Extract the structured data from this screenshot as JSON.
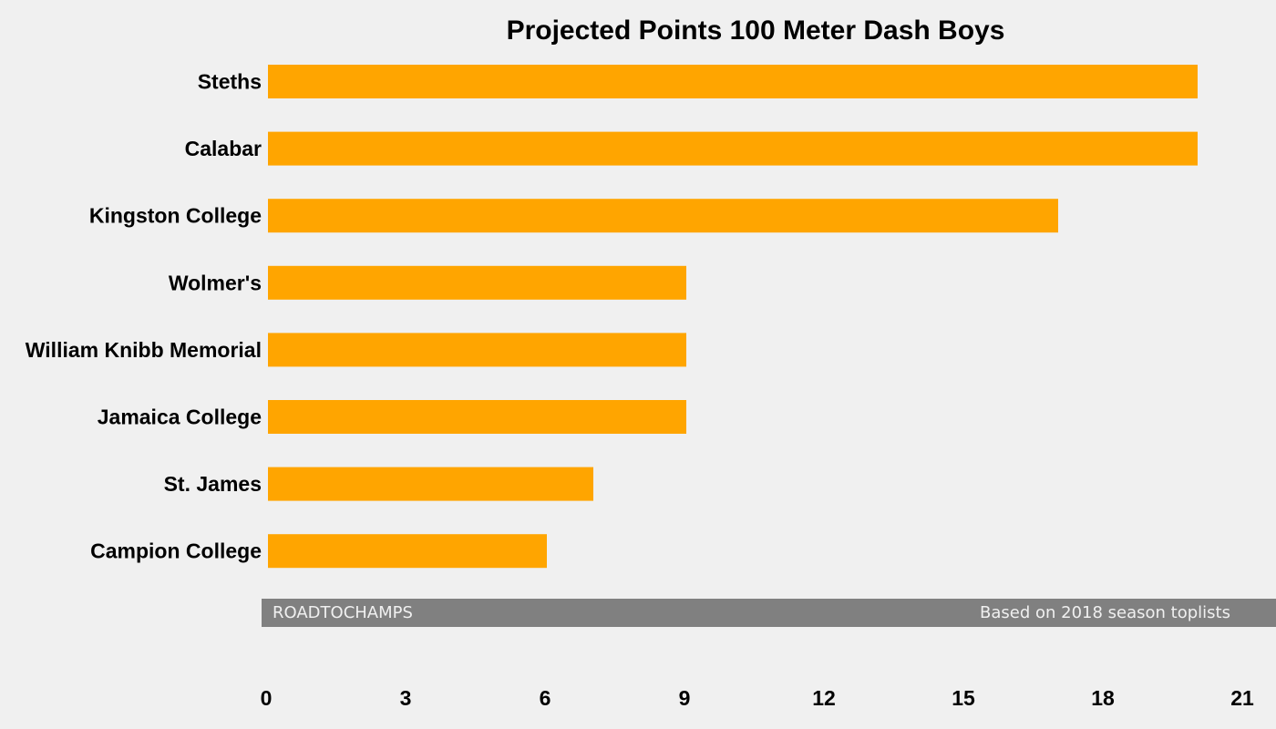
{
  "colors": {
    "background": "#f0f0f0",
    "bar": "#ffa500",
    "footer_band": "#808080",
    "footer_text": "#f0f0f0",
    "text": "#000000"
  },
  "footer": {
    "left": "ROADTOCHAMPS",
    "right": "Based on 2018 season toplists"
  },
  "chart_data": {
    "type": "bar",
    "orientation": "horizontal",
    "title": "Projected Points 100 Meter Dash Boys",
    "xlabel": "",
    "ylabel": "",
    "categories": [
      "Steths",
      "Calabar",
      "Kingston College",
      "Wolmer's",
      "William Knibb Memorial",
      "Jamaica College",
      "St. James",
      "Campion College"
    ],
    "values": [
      20,
      20,
      17,
      9,
      9,
      9,
      7,
      6
    ],
    "xlim": [
      0,
      21
    ],
    "xticks": [
      0,
      3,
      6,
      9,
      12,
      15,
      18,
      21
    ],
    "grid": false,
    "legend": "none"
  }
}
